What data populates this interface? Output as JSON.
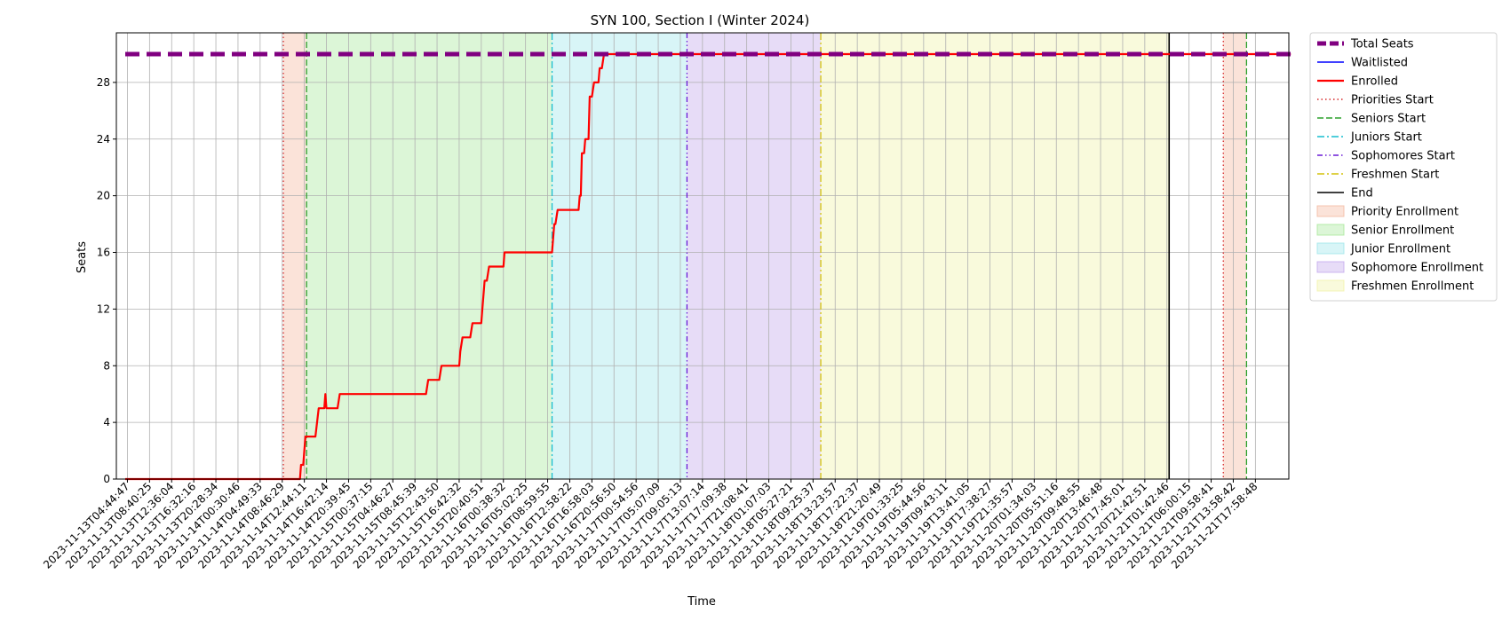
{
  "chart_data": {
    "type": "line",
    "title": "SYN 100, Section I (Winter 2024)",
    "xlabel": "Time",
    "ylabel": "Seats",
    "ylim": [
      0,
      30
    ],
    "yticks": [
      0,
      4,
      8,
      12,
      16,
      20,
      24,
      28
    ],
    "grid": true,
    "legend_position": "outside-right-top",
    "x_tick_labels": [
      "2023-11-13T04:44:47",
      "2023-11-13T08:40:25",
      "2023-11-13T12:36:04",
      "2023-11-13T16:32:16",
      "2023-11-13T20:28:34",
      "2023-11-14T00:30:46",
      "2023-11-14T04:49:33",
      "2023-11-14T08:46:29",
      "2023-11-14T12:44:11",
      "2023-11-14T16:42:14",
      "2023-11-14T20:39:45",
      "2023-11-15T00:37:15",
      "2023-11-15T04:46:27",
      "2023-11-15T08:45:39",
      "2023-11-15T12:43:50",
      "2023-11-15T16:42:32",
      "2023-11-15T20:40:51",
      "2023-11-16T00:38:32",
      "2023-11-16T05:02:25",
      "2023-11-16T08:59:55",
      "2023-11-16T12:58:22",
      "2023-11-16T16:58:03",
      "2023-11-16T20:56:50",
      "2023-11-17T00:54:56",
      "2023-11-17T05:07:09",
      "2023-11-17T09:05:13",
      "2023-11-17T13:07:14",
      "2023-11-17T17:09:38",
      "2023-11-17T21:08:41",
      "2023-11-18T01:07:03",
      "2023-11-18T05:27:21",
      "2023-11-18T09:25:37",
      "2023-11-18T13:23:57",
      "2023-11-18T17:22:37",
      "2023-11-18T21:20:49",
      "2023-11-19T01:33:25",
      "2023-11-19T05:44:56",
      "2023-11-19T09:43:11",
      "2023-11-19T13:41:05",
      "2023-11-19T17:38:27",
      "2023-11-19T21:35:57",
      "2023-11-20T01:34:03",
      "2023-11-20T05:51:16",
      "2023-11-20T09:48:55",
      "2023-11-20T13:46:48",
      "2023-11-20T17:45:01",
      "2023-11-20T21:42:51",
      "2023-11-21T01:42:46",
      "2023-11-21T06:00:15",
      "2023-11-21T09:58:41",
      "2023-11-21T13:58:42",
      "2023-11-21T17:58:48"
    ],
    "series": [
      {
        "name": "Total Seats",
        "color": "#800080",
        "style": "dashed-thick",
        "points": [
          [
            -0.1,
            30
          ],
          [
            52.6,
            30
          ]
        ]
      },
      {
        "name": "Waitlisted",
        "color": "#0000ff",
        "style": "solid",
        "points": []
      },
      {
        "name": "Enrolled",
        "color": "#ff0000",
        "style": "solid",
        "points": [
          [
            -0.1,
            0
          ],
          [
            7.8,
            0
          ],
          [
            7.85,
            1
          ],
          [
            7.95,
            1
          ],
          [
            8.0,
            2
          ],
          [
            8.05,
            3
          ],
          [
            8.1,
            3
          ],
          [
            8.5,
            3
          ],
          [
            8.65,
            5
          ],
          [
            8.9,
            5
          ],
          [
            8.95,
            6
          ],
          [
            9.0,
            5
          ],
          [
            9.5,
            5
          ],
          [
            9.6,
            6
          ],
          [
            13.5,
            6
          ],
          [
            13.6,
            7
          ],
          [
            14.1,
            7
          ],
          [
            14.2,
            8
          ],
          [
            15.0,
            8
          ],
          [
            15.05,
            9
          ],
          [
            15.15,
            10
          ],
          [
            15.5,
            10
          ],
          [
            15.6,
            11
          ],
          [
            16.0,
            11
          ],
          [
            16.15,
            14
          ],
          [
            16.25,
            14
          ],
          [
            16.35,
            15
          ],
          [
            17.0,
            15
          ],
          [
            17.05,
            16
          ],
          [
            19.2,
            16
          ],
          [
            19.3,
            18
          ],
          [
            19.35,
            18
          ],
          [
            19.45,
            19
          ],
          [
            20.4,
            19
          ],
          [
            20.45,
            20
          ],
          [
            20.5,
            20
          ],
          [
            20.55,
            23
          ],
          [
            20.65,
            23
          ],
          [
            20.7,
            24
          ],
          [
            20.85,
            24
          ],
          [
            20.9,
            27
          ],
          [
            21.0,
            27
          ],
          [
            21.1,
            28
          ],
          [
            21.3,
            28
          ],
          [
            21.35,
            29
          ],
          [
            21.45,
            29
          ],
          [
            21.55,
            30
          ],
          [
            52.6,
            30
          ]
        ]
      }
    ],
    "markers": [
      {
        "name": "Priorities Start",
        "x": 7.05,
        "color": "#d62728",
        "style": "dotted"
      },
      {
        "name": "Seniors Start",
        "x": 8.1,
        "color": "#2ca02c",
        "style": "dashed"
      },
      {
        "name": "Juniors Start",
        "x": 19.2,
        "color": "#17becf",
        "style": "dashdot"
      },
      {
        "name": "Sophomores Start",
        "x": 25.3,
        "color": "#6a1bd6",
        "style": "dashdotdot"
      },
      {
        "name": "Freshmen Start",
        "x": 31.35,
        "color": "#d4c20a",
        "style": "dashdot"
      },
      {
        "name": "End",
        "x": 47.1,
        "color": "#000000",
        "style": "solid"
      }
    ],
    "second_markers": [
      {
        "name": "Priorities Start",
        "x": 49.55
      },
      {
        "name": "Seniors Start",
        "x": 50.6
      }
    ],
    "shaded_regions": [
      {
        "name": "Priority Enrollment",
        "color": "#f4b8a0",
        "ranges": [
          [
            7.05,
            8.1
          ],
          [
            49.55,
            50.6
          ]
        ]
      },
      {
        "name": "Senior Enrollment",
        "color": "#a8e89a",
        "ranges": [
          [
            8.1,
            19.2
          ]
        ]
      },
      {
        "name": "Junior Enrollment",
        "color": "#9de6ea",
        "ranges": [
          [
            19.2,
            25.3
          ]
        ]
      },
      {
        "name": "Sophomore Enrollment",
        "color": "#c3a8ec",
        "ranges": [
          [
            25.3,
            31.35
          ]
        ]
      },
      {
        "name": "Freshmen Enrollment",
        "color": "#f1f2a8",
        "ranges": [
          [
            31.35,
            47.1
          ]
        ]
      }
    ]
  }
}
